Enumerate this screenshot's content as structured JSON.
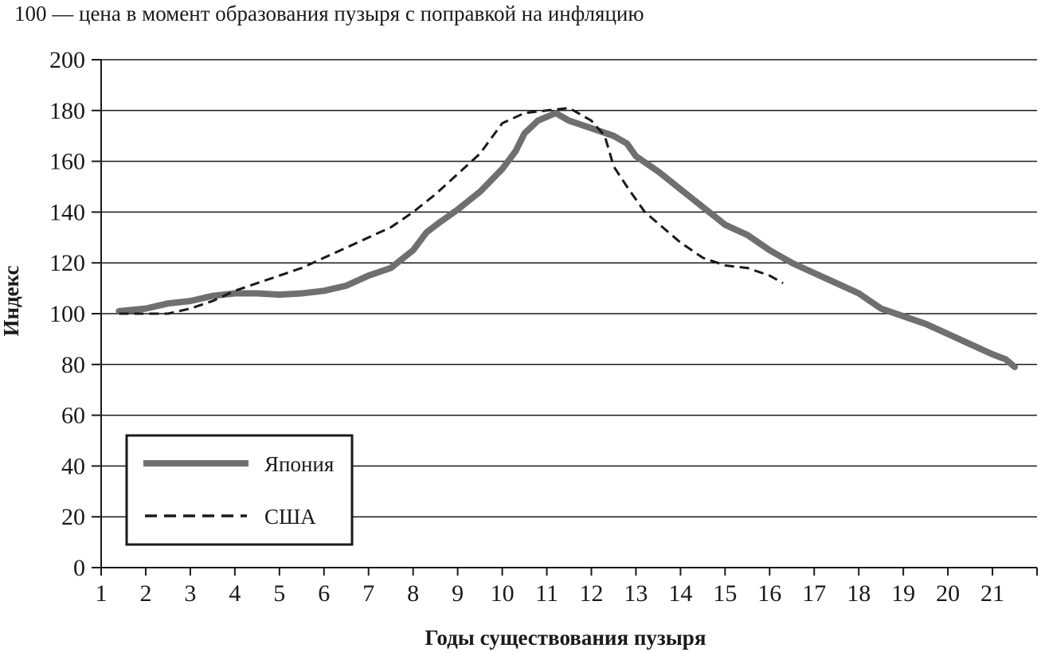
{
  "chart_data": {
    "type": "line",
    "subtitle": "100 — цена в момент образования пузыря с поправкой на инфляцию",
    "xlabel": "Годы существования пузыря",
    "ylabel": "Индекс",
    "xlim": [
      1,
      22
    ],
    "ylim": [
      0,
      200
    ],
    "x_ticks": [
      1,
      2,
      3,
      4,
      5,
      6,
      7,
      8,
      9,
      10,
      11,
      12,
      13,
      14,
      15,
      16,
      17,
      18,
      19,
      20,
      21
    ],
    "y_ticks": [
      0,
      20,
      40,
      60,
      80,
      100,
      120,
      140,
      160,
      180,
      200
    ],
    "grid": "horizontal",
    "legend_position": "bottom-left",
    "series": [
      {
        "name": "Япония",
        "style": "solid",
        "color": "#6f6f6f",
        "points": [
          [
            1.4,
            101
          ],
          [
            2.0,
            102
          ],
          [
            2.5,
            104
          ],
          [
            3.0,
            105
          ],
          [
            3.5,
            107
          ],
          [
            4.0,
            108
          ],
          [
            4.5,
            108
          ],
          [
            5.0,
            107.5
          ],
          [
            5.5,
            108
          ],
          [
            6.0,
            109
          ],
          [
            6.5,
            111
          ],
          [
            7.0,
            115
          ],
          [
            7.5,
            118
          ],
          [
            8.0,
            125
          ],
          [
            8.3,
            132
          ],
          [
            8.6,
            136
          ],
          [
            9.0,
            141
          ],
          [
            9.5,
            148
          ],
          [
            10.0,
            157
          ],
          [
            10.3,
            164
          ],
          [
            10.5,
            171
          ],
          [
            10.8,
            176
          ],
          [
            11.2,
            179
          ],
          [
            11.5,
            176
          ],
          [
            12.0,
            173
          ],
          [
            12.5,
            170
          ],
          [
            12.8,
            167
          ],
          [
            13.0,
            162
          ],
          [
            13.5,
            156
          ],
          [
            14.0,
            149
          ],
          [
            14.5,
            142
          ],
          [
            15.0,
            135
          ],
          [
            15.5,
            131
          ],
          [
            16.0,
            125
          ],
          [
            16.5,
            120
          ],
          [
            17.0,
            116
          ],
          [
            17.5,
            112
          ],
          [
            18.0,
            108
          ],
          [
            18.5,
            102
          ],
          [
            19.0,
            99
          ],
          [
            19.5,
            96
          ],
          [
            20.0,
            92
          ],
          [
            20.5,
            88
          ],
          [
            21.0,
            84
          ],
          [
            21.3,
            82
          ],
          [
            21.5,
            79
          ]
        ]
      },
      {
        "name": "США",
        "style": "dashed",
        "color": "#1a1a1a",
        "points": [
          [
            1.4,
            100
          ],
          [
            2.0,
            100
          ],
          [
            2.5,
            100
          ],
          [
            3.0,
            102
          ],
          [
            3.5,
            105
          ],
          [
            4.0,
            109
          ],
          [
            4.5,
            112
          ],
          [
            5.0,
            115
          ],
          [
            5.5,
            118
          ],
          [
            6.0,
            122
          ],
          [
            6.5,
            126
          ],
          [
            7.0,
            130
          ],
          [
            7.5,
            134
          ],
          [
            8.0,
            140
          ],
          [
            8.5,
            147
          ],
          [
            9.0,
            155
          ],
          [
            9.5,
            163
          ],
          [
            10.0,
            175
          ],
          [
            10.5,
            179
          ],
          [
            11.0,
            180
          ],
          [
            11.5,
            181
          ],
          [
            12.0,
            176
          ],
          [
            12.3,
            170
          ],
          [
            12.5,
            158
          ],
          [
            12.8,
            150
          ],
          [
            13.2,
            140
          ],
          [
            13.6,
            134
          ],
          [
            14.0,
            128
          ],
          [
            14.5,
            122
          ],
          [
            15.0,
            119
          ],
          [
            15.5,
            118
          ],
          [
            16.0,
            115
          ],
          [
            16.3,
            112
          ]
        ]
      }
    ]
  }
}
